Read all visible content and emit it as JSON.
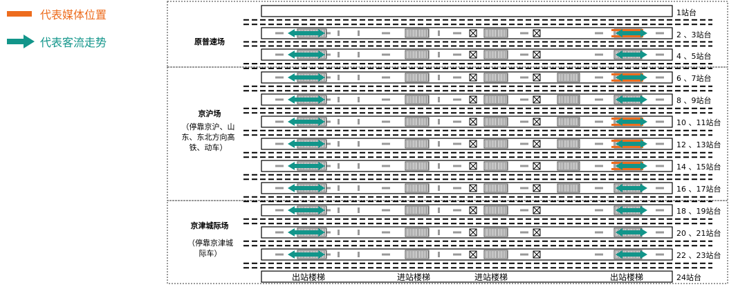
{
  "legend": {
    "media_label": "代表媒体位置",
    "media_color": "#ED6C1E",
    "flow_label": "代表客流走势",
    "flow_color": "#12958A"
  },
  "sections": [
    {
      "name": "原普速场",
      "note": ""
    },
    {
      "name": "京沪场",
      "note": "（停靠京沪、山东、东北方向高铁、动车）"
    },
    {
      "name": "京津城际场",
      "note": "（停靠京津城际车）"
    }
  ],
  "platforms": [
    {
      "label": "1站台",
      "type": "plain",
      "media": false
    },
    {
      "label": "2 、3站台",
      "type": "normal",
      "media": true
    },
    {
      "label": "4 、5站台",
      "type": "normal",
      "media": false
    },
    {
      "label": "6 、7站台",
      "type": "full",
      "media": true
    },
    {
      "label": "8 、9站台",
      "type": "full",
      "media": false
    },
    {
      "label": "10 、11站台",
      "type": "full",
      "media": true
    },
    {
      "label": "12 、13站台",
      "type": "full",
      "media": true
    },
    {
      "label": "14 、15站台",
      "type": "full",
      "media": true
    },
    {
      "label": "16 、17站台",
      "type": "full",
      "media": false
    },
    {
      "label": "18 、19站台",
      "type": "normal",
      "media": false
    },
    {
      "label": "20 、21站台",
      "type": "normal",
      "media": false
    },
    {
      "label": "22 、23站台",
      "type": "normal",
      "media": false
    },
    {
      "label": "24站台",
      "type": "stairs",
      "media": false
    }
  ],
  "stairs": {
    "exit_left": "出站楼梯",
    "entry_1": "进站楼梯",
    "entry_2": "进站楼梯",
    "exit_right": "出站楼梯"
  }
}
